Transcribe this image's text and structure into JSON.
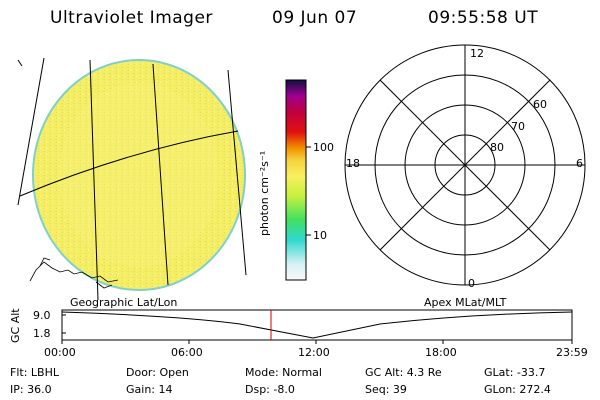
{
  "header": {
    "instrument": "Ultraviolet Imager",
    "date": "09 Jun 07",
    "time": "09:55:58 UT"
  },
  "colorbar": {
    "label": "photon cm⁻²s⁻¹",
    "ticks": [
      "100",
      "10"
    ]
  },
  "polar": {
    "mlt_labels": {
      "top": "12",
      "left": "18",
      "right": "6",
      "bottom": "0"
    },
    "lat_labels": [
      "60",
      "70",
      "80"
    ]
  },
  "panel_labels": {
    "left": "Geographic Lat/Lon",
    "right": "Apex MLat/MLT"
  },
  "altitude_plot": {
    "ylabel": "GC Alt",
    "ytick": "9.0",
    "ytick2": "1.8",
    "xticks": [
      "00:00",
      "06:00",
      "12:00",
      "18:00",
      "23:59"
    ]
  },
  "status": {
    "flt": "Flt: LBHL",
    "ip": "IP: 36.0",
    "door": "Door: Open",
    "gain": "Gain: 14",
    "mode": "Mode: Normal",
    "dsp": "Dsp:   -8.0",
    "gcalt": "GC Alt: 4.3 Re",
    "seq": "Seq: 39",
    "glat": "GLat: -33.7",
    "glon": "GLon: 272.4"
  },
  "colors": {
    "earth_fill": "#f4ef6a",
    "earth_edge": "#7fd0c8",
    "marker": "#cc0000"
  }
}
